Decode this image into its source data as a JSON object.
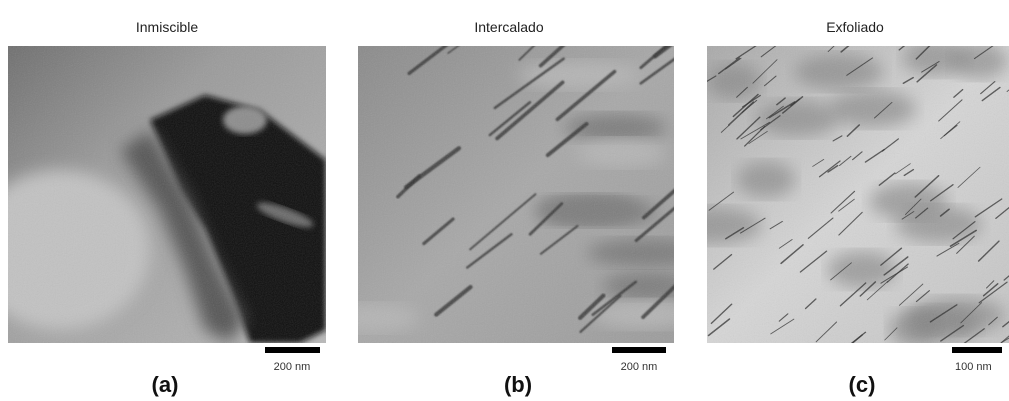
{
  "panels": [
    {
      "title": "Inmiscible",
      "scale_bar": "200 nm",
      "caption": "(a)"
    },
    {
      "title": "Intercalado",
      "scale_bar": "200 nm",
      "caption": "(b)"
    },
    {
      "title": "Exfoliado",
      "scale_bar": "100 nm",
      "caption": "(c)"
    }
  ]
}
